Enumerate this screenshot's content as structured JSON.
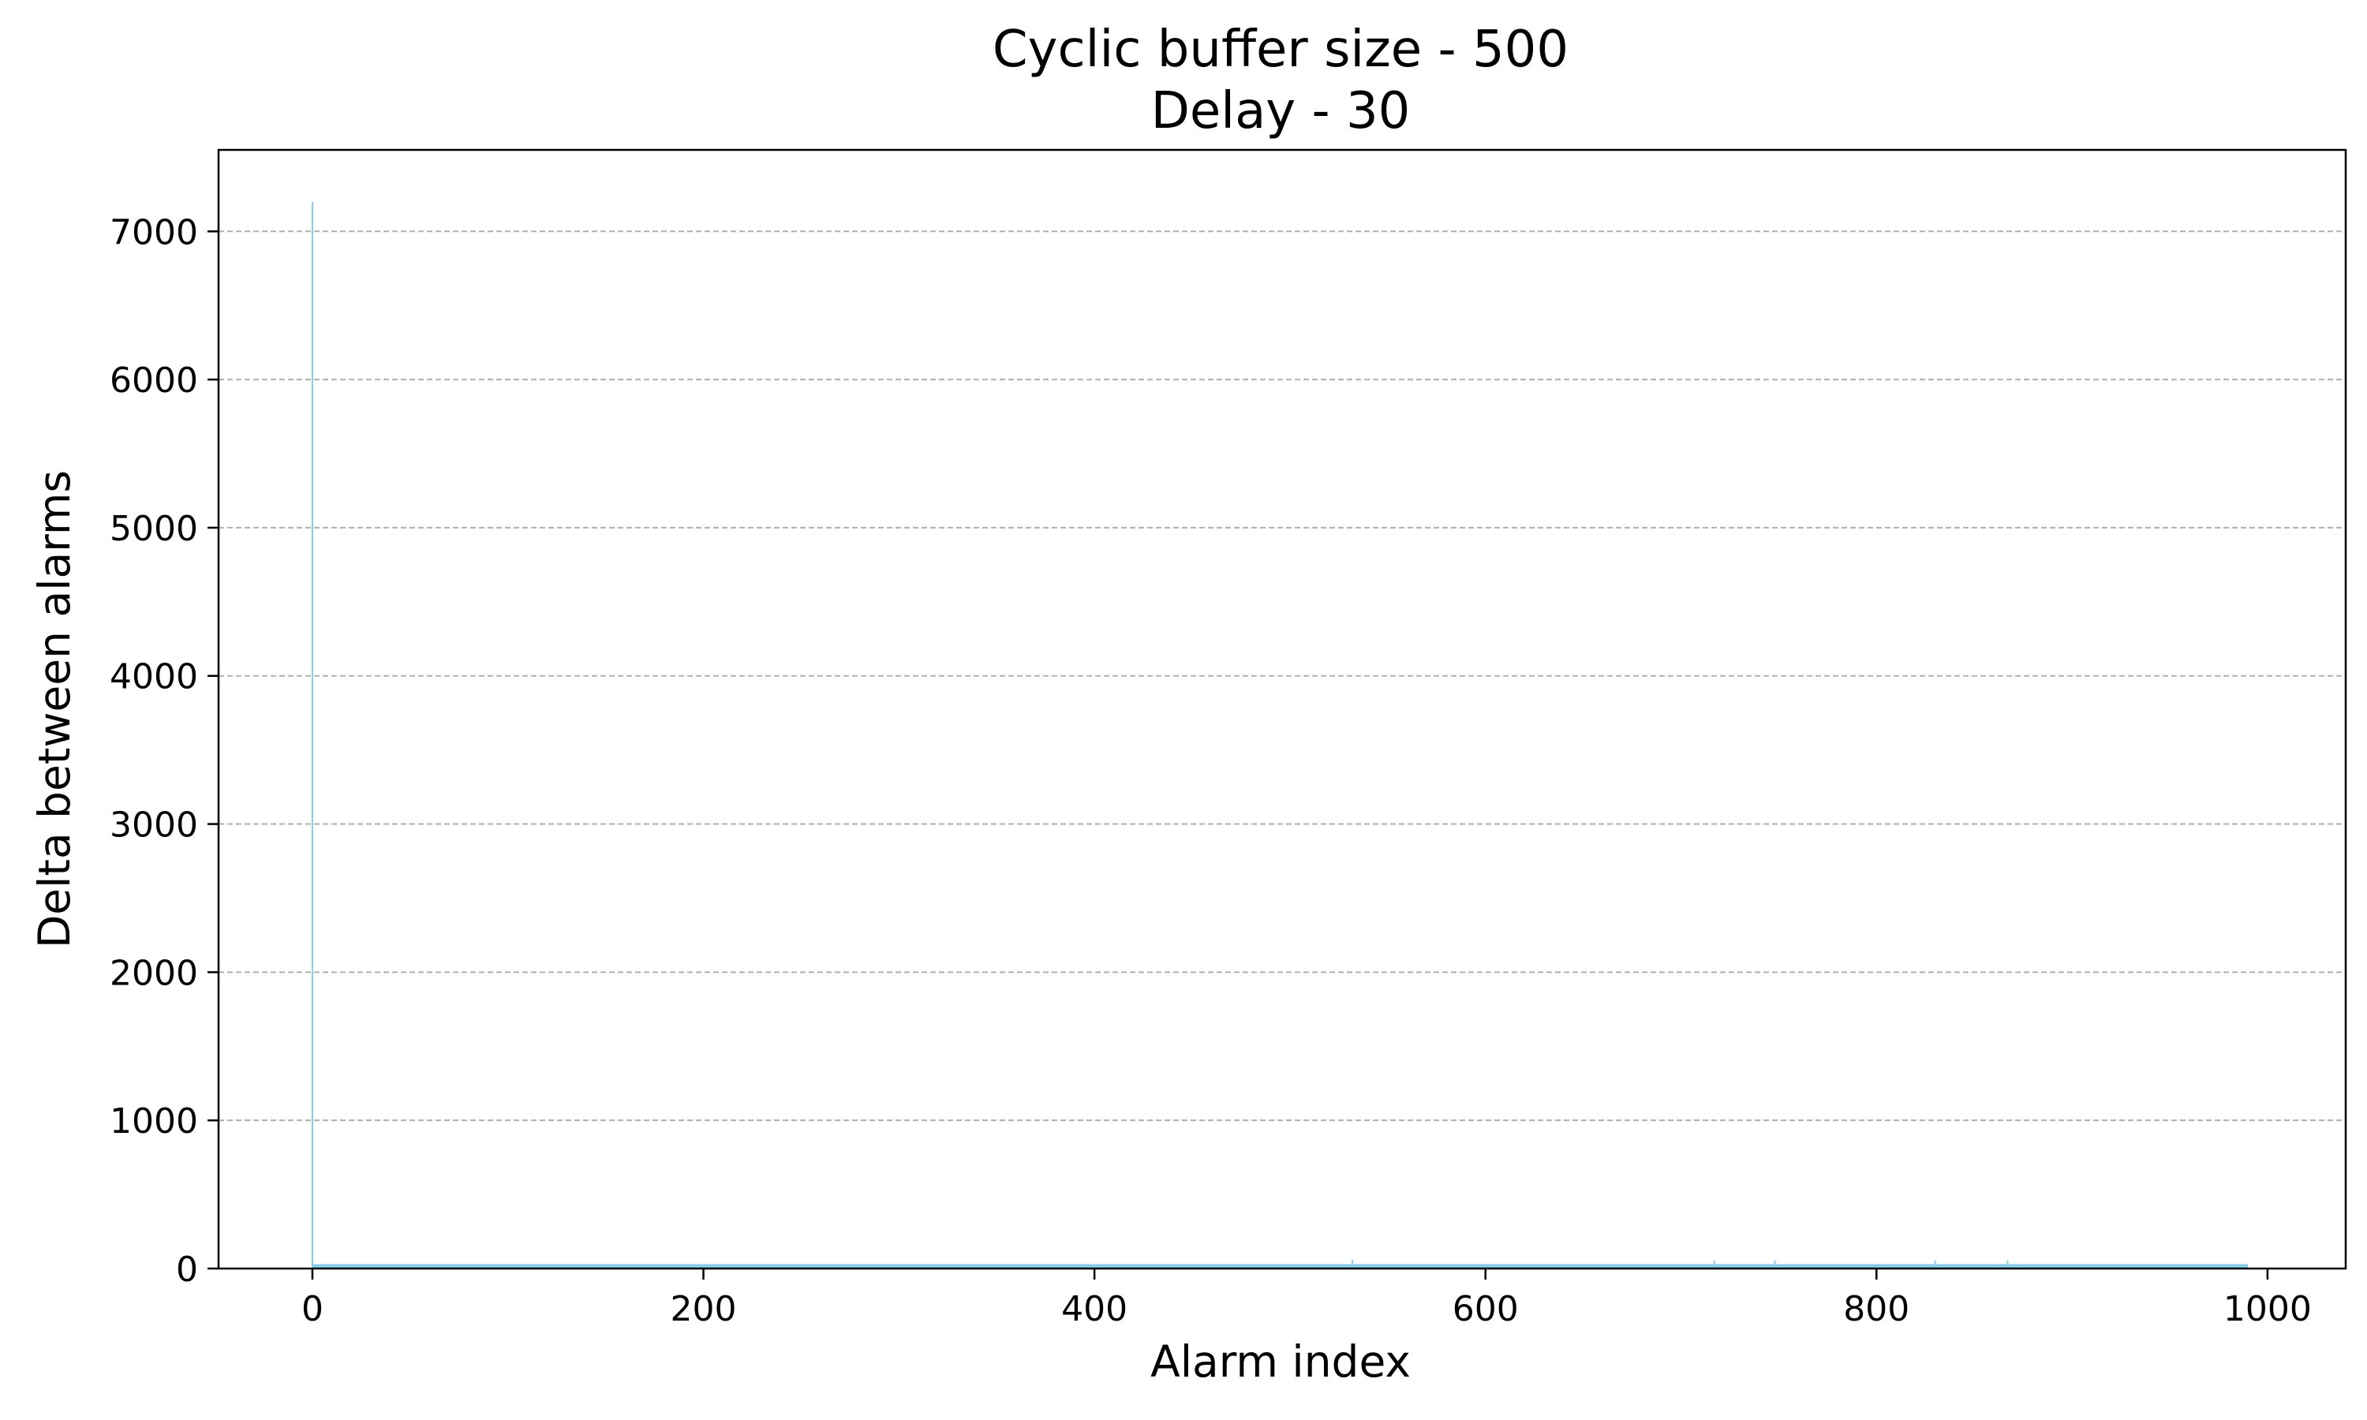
{
  "chart_data": {
    "type": "bar",
    "title": "Cyclic buffer size - 500",
    "subtitle": "Delay - 30",
    "xlabel": "Alarm index",
    "ylabel": "Delta between alarms",
    "xlim": [
      -48,
      1040
    ],
    "ylim": [
      0,
      7550
    ],
    "xticks": [
      0,
      200,
      400,
      600,
      800,
      1000
    ],
    "yticks": [
      0,
      1000,
      2000,
      3000,
      4000,
      5000,
      6000,
      7000
    ],
    "grid": "y",
    "legend": "none",
    "bar_color": "#87ceeb",
    "baseline": 30,
    "n_points": 991,
    "x": [
      0,
      532,
      717,
      748,
      830,
      867
    ],
    "values": [
      7200,
      60,
      55,
      55,
      55,
      55
    ]
  }
}
